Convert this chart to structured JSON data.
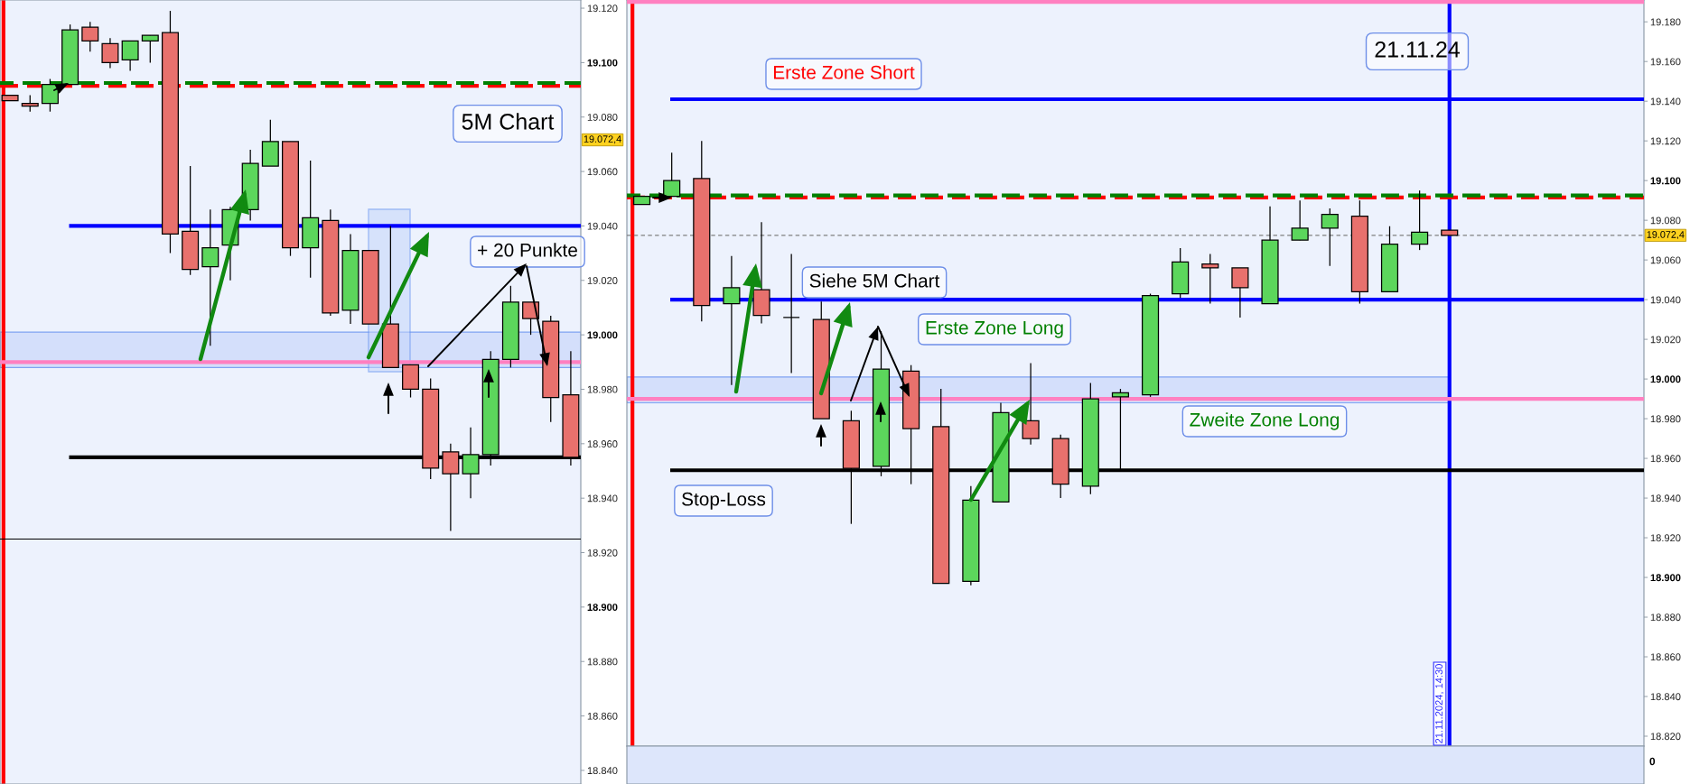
{
  "chart_data": [
    {
      "type": "candlestick",
      "categories": [
        null,
        null,
        null,
        null,
        null,
        null,
        null,
        null,
        null,
        null,
        null,
        null,
        null,
        null,
        null,
        null,
        null,
        null,
        null,
        null,
        null,
        null,
        null,
        null,
        null,
        null,
        null,
        null,
        null
      ],
      "ohlc": [
        [
          19088,
          19088,
          19086,
          19086
        ],
        [
          19085,
          19088,
          19082,
          19084
        ],
        [
          19085,
          19094,
          19082,
          19092
        ],
        [
          19092,
          19114,
          19092,
          19112
        ],
        [
          19113,
          19115,
          19104,
          19108
        ],
        [
          19107,
          19109,
          19098,
          19100
        ],
        [
          19101,
          19108,
          19097,
          19108
        ],
        [
          19108,
          19110,
          19100,
          19110
        ],
        [
          19111,
          19119,
          19030,
          19037
        ],
        [
          19038,
          19062,
          19022,
          19024
        ],
        [
          19025,
          19046,
          18996,
          19032
        ],
        [
          19033,
          19047,
          19020,
          19046
        ],
        [
          19046,
          19068,
          19042,
          19063
        ],
        [
          19062,
          19079,
          19062,
          19071
        ],
        [
          19071,
          19071,
          19029,
          19032
        ],
        [
          19032,
          19064,
          19021,
          19043
        ],
        [
          19042,
          19046,
          19007,
          19008
        ],
        [
          19009,
          19037,
          19004,
          19031
        ],
        [
          19031,
          19031,
          19004,
          19004
        ],
        [
          19004,
          19040,
          18988,
          18988
        ],
        [
          18989,
          18989,
          18977,
          18980
        ],
        [
          18980,
          18984,
          18947,
          18951
        ],
        [
          18957,
          18960,
          18928,
          18949
        ],
        [
          18949,
          18966,
          18940,
          18956
        ],
        [
          18956,
          18994,
          18952,
          18991
        ],
        [
          18991,
          19018,
          18988,
          19012
        ],
        [
          19012,
          19012,
          19000,
          19006
        ],
        [
          19005,
          19007,
          18968,
          18977
        ],
        [
          18978,
          18994,
          18952,
          18955
        ]
      ],
      "colors": [
        "#e8716d",
        "#e8716d",
        "#5cd65c",
        "#5cd65c",
        "#e8716d",
        "#e8716d",
        "#5cd65c",
        "#5cd65c",
        "#e8716d",
        "#e8716d",
        "#5cd65c",
        "#5cd65c",
        "#5cd65c",
        "#5cd65c",
        "#e8716d",
        "#5cd65c",
        "#e8716d",
        "#5cd65c",
        "#e8716d",
        "#e8716d",
        "#e8716d",
        "#e8716d",
        "#e8716d",
        "#5cd65c",
        "#5cd65c",
        "#5cd65c",
        "#e8716d",
        "#e8716d",
        "#e8716d"
      ],
      "ylim": [
        18835,
        19123
      ],
      "yticks": [
        {
          "value": 18840,
          "label": "18.840"
        },
        {
          "value": 18860,
          "label": "18.860"
        },
        {
          "value": 18880,
          "label": "18.880"
        },
        {
          "value": 18900,
          "label": "18.900"
        },
        {
          "value": 18920,
          "label": "18.920"
        },
        {
          "value": 18940,
          "label": "18.940"
        },
        {
          "value": 18960,
          "label": "18.960"
        },
        {
          "value": 18980,
          "label": "18.980"
        },
        {
          "value": 19000,
          "label": "19.000"
        },
        {
          "value": 19020,
          "label": "19.020"
        },
        {
          "value": 19040,
          "label": "19.040"
        },
        {
          "value": 19060,
          "label": "19.060"
        },
        {
          "value": 19080,
          "label": "19.080"
        },
        {
          "value": 19100,
          "label": "19.100"
        },
        {
          "value": 19120,
          "label": "19.120"
        }
      ],
      "tick_labels": "y",
      "ref_lines": [
        {
          "axis": "y",
          "value": 19091.5,
          "color": "#ff0000",
          "line_style": "dashed"
        },
        {
          "axis": "y",
          "value": 19092.5,
          "color": "#008000",
          "line_style": "dashed"
        },
        {
          "axis": "y",
          "value": 19040,
          "color": "#0000ff"
        },
        {
          "axis": "y",
          "value": 18990,
          "color": "#ff80c0"
        },
        {
          "axis": "y",
          "value": 18955,
          "color": "#000000"
        },
        {
          "axis": "y",
          "value": 18925,
          "color": "#000000"
        }
      ],
      "bands": [
        {
          "axis": "y",
          "from": 18988,
          "to": 19001,
          "color": "#d4dffb"
        }
      ],
      "annotations": [
        "5M Chart",
        "+ 20 Punkte",
        "19.072,4"
      ]
    },
    {
      "type": "candlestick",
      "categories": [
        null,
        null,
        null,
        null,
        null,
        null,
        null,
        null,
        null,
        null,
        null,
        null,
        null,
        null,
        null,
        null,
        null,
        null,
        null,
        null,
        null,
        null,
        null,
        null,
        null,
        null,
        null,
        null,
        null,
        null,
        null,
        null,
        null,
        null
      ],
      "ohlc": [
        [
          19088,
          19092,
          19088,
          19092
        ],
        [
          19092,
          19114,
          19092,
          19100
        ],
        [
          19101,
          19120,
          19029,
          19037
        ],
        [
          19038,
          19062,
          18997,
          19046
        ],
        [
          19045,
          19079,
          19028,
          19032
        ],
        [
          19031,
          19063,
          19003,
          19031
        ],
        [
          19030,
          19039,
          18980,
          18980
        ],
        [
          18979,
          18984,
          18927,
          18955
        ],
        [
          18956,
          19024,
          18951,
          19005
        ],
        [
          19004,
          19007,
          18947,
          18975
        ],
        [
          18976,
          18995,
          18897,
          18897
        ],
        [
          18898,
          18946,
          18896,
          18939
        ],
        [
          18938,
          18988,
          18938,
          18983
        ],
        [
          18979,
          19008,
          18967,
          18970
        ],
        [
          18970,
          18972,
          18940,
          18947
        ],
        [
          18946,
          18998,
          18942,
          18990
        ],
        [
          18991,
          18995,
          18954,
          18993
        ],
        [
          18992,
          19043,
          18991,
          19042
        ],
        [
          19043,
          19066,
          19041,
          19059
        ],
        [
          19058,
          19063,
          19038,
          19056
        ],
        [
          19056,
          19056,
          19031,
          19046
        ],
        [
          19038,
          19087,
          19038,
          19070
        ],
        [
          19070,
          19090,
          19070,
          19076
        ],
        [
          19076,
          19086,
          19057,
          19083
        ],
        [
          19082,
          19090,
          19038,
          19044
        ],
        [
          19044,
          19077,
          19044,
          19068
        ],
        [
          19068,
          19095,
          19065,
          19074
        ],
        [
          19075,
          19075,
          19072.4,
          19072.4
        ],
        null,
        null,
        null,
        null,
        null,
        null
      ],
      "colors": [
        "#5cd65c",
        "#5cd65c",
        "#e8716d",
        "#5cd65c",
        "#e8716d",
        "#000000",
        "#e8716d",
        "#e8716d",
        "#5cd65c",
        "#e8716d",
        "#e8716d",
        "#5cd65c",
        "#5cd65c",
        "#e8716d",
        "#e8716d",
        "#5cd65c",
        "#5cd65c",
        "#5cd65c",
        "#5cd65c",
        "#e8716d",
        "#e8716d",
        "#5cd65c",
        "#5cd65c",
        "#5cd65c",
        "#e8716d",
        "#5cd65c",
        "#5cd65c",
        "#e8716d",
        null,
        null,
        null,
        null,
        null,
        null
      ],
      "ylim": [
        18815,
        19191
      ],
      "yticks": [
        {
          "value": 18820,
          "label": "18.820"
        },
        {
          "value": 18840,
          "label": "18.840"
        },
        {
          "value": 18860,
          "label": "18.860"
        },
        {
          "value": 18880,
          "label": "18.880"
        },
        {
          "value": 18900,
          "label": "18.900"
        },
        {
          "value": 18920,
          "label": "18.920"
        },
        {
          "value": 18940,
          "label": "18.940"
        },
        {
          "value": 18960,
          "label": "18.960"
        },
        {
          "value": 18980,
          "label": "18.980"
        },
        {
          "value": 19000,
          "label": "19.000"
        },
        {
          "value": 19020,
          "label": "19.020"
        },
        {
          "value": 19040,
          "label": "19.040"
        },
        {
          "value": 19060,
          "label": "19.060"
        },
        {
          "value": 19080,
          "label": "19.080"
        },
        {
          "value": 19100,
          "label": "19.100"
        },
        {
          "value": 19120,
          "label": "19.120"
        },
        {
          "value": 19140,
          "label": "19.140"
        },
        {
          "value": 19160,
          "label": "19.160"
        },
        {
          "value": 19180,
          "label": "19.180"
        }
      ],
      "tick_labels": "y",
      "ref_lines": [
        {
          "axis": "y",
          "value": 19190,
          "color": "#ff80c0"
        },
        {
          "axis": "y",
          "value": 19141,
          "color": "#0000ff"
        },
        {
          "axis": "y",
          "value": 19091.5,
          "color": "#ff0000",
          "line_style": "dashed"
        },
        {
          "axis": "y",
          "value": 19092.5,
          "color": "#008000",
          "line_style": "dashed"
        },
        {
          "axis": "y",
          "value": 19072.4,
          "label": "19.072,4",
          "color": "#808080",
          "line_style": "dashed"
        },
        {
          "axis": "y",
          "value": 19040,
          "color": "#0000ff"
        },
        {
          "axis": "y",
          "value": 18990,
          "color": "#ff80c0"
        },
        {
          "axis": "y",
          "value": 18954,
          "color": "#000000"
        }
      ],
      "bands": [
        {
          "axis": "y",
          "from": 18988,
          "to": 19001,
          "color": "#d4dffb"
        }
      ],
      "annotations": [
        "Erste Zone Short",
        "Siehe 5M Chart",
        "Erste Zone Long",
        "Zweite Zone Long",
        "Stop-Loss",
        "21.11.24",
        "21.11.2024, 14:30",
        "0"
      ]
    }
  ]
}
